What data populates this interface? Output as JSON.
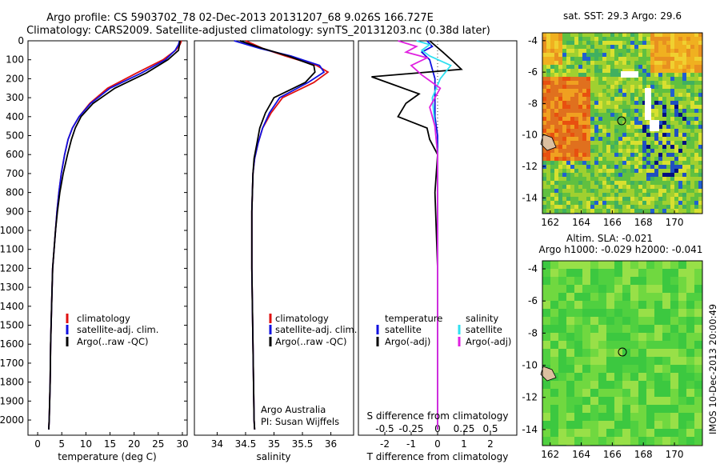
{
  "title_line1": "Argo profile: CS 5903702_78 02-Dec-2013 20131207_68 9.026S 166.727E",
  "title_line2": "Climatology: CARS2009. Satellite-adjusted climatology: synTS_20131203.nc (0.38d later)",
  "colors": {
    "climatology": "#e01010",
    "satellite": "#1010e0",
    "argo": "#000000",
    "sal_satellite": "#30e0f0",
    "sal_argo": "#e020e0"
  },
  "chart_data": [
    {
      "type": "line",
      "name": "temperature-profile",
      "xlabel": "temperature (deg C)",
      "ylabel": "",
      "xlim": [
        -2,
        31
      ],
      "ylim": [
        2080,
        0
      ],
      "xticks": [
        0,
        5,
        10,
        15,
        20,
        25,
        30
      ],
      "yticks": [
        0,
        100,
        200,
        300,
        400,
        500,
        600,
        700,
        800,
        900,
        1000,
        1100,
        1200,
        1300,
        1400,
        1500,
        1600,
        1700,
        1800,
        1900,
        2000
      ],
      "legend": [
        "climatology",
        "satellite-adj. clim.",
        "Argo(..raw -QC)"
      ],
      "series": [
        {
          "name": "climatology",
          "x": [
            29.8,
            29.5,
            28.6,
            26,
            20.5,
            14.5,
            10.8,
            8.6,
            7.2,
            6.3,
            5.6,
            4.9,
            4.4,
            4.0,
            3.7,
            3.4,
            3.1,
            2.9,
            2.7,
            2.6,
            2.5,
            2.4,
            2.3
          ],
          "y": [
            0,
            20,
            50,
            100,
            170,
            250,
            330,
            400,
            460,
            520,
            600,
            700,
            800,
            900,
            1000,
            1100,
            1200,
            1400,
            1600,
            1800,
            1900,
            2000,
            2050
          ]
        },
        {
          "name": "satellite-adj. clim.",
          "x": [
            29.4,
            29.2,
            28.5,
            26.5,
            21.5,
            15,
            11,
            8.6,
            7.2,
            6.3,
            5.6,
            4.9,
            4.4,
            4.0,
            3.7,
            3.4,
            3.1,
            2.9,
            2.7,
            2.6,
            2.5,
            2.4,
            2.3
          ],
          "y": [
            0,
            20,
            50,
            100,
            170,
            250,
            330,
            400,
            460,
            520,
            600,
            700,
            800,
            900,
            1000,
            1100,
            1200,
            1400,
            1600,
            1800,
            1900,
            2000,
            2050
          ]
        },
        {
          "name": "Argo(..raw -QC)",
          "x": [
            29.5,
            29.4,
            29.2,
            27,
            22.5,
            16,
            11.5,
            9,
            7.8,
            7.0,
            6.2,
            5.3,
            4.6,
            4.1,
            3.7,
            3.4,
            3.1,
            2.9,
            2.7,
            2.6,
            2.5,
            2.4,
            2.3
          ],
          "y": [
            0,
            20,
            50,
            100,
            170,
            250,
            330,
            400,
            460,
            520,
            600,
            700,
            800,
            900,
            1000,
            1100,
            1200,
            1400,
            1600,
            1800,
            1900,
            2000,
            2050
          ]
        }
      ]
    },
    {
      "type": "line",
      "name": "salinity-profile",
      "xlabel": "salinity",
      "xlim": [
        33.6,
        36.4
      ],
      "ylim": [
        2080,
        0
      ],
      "xticks": [
        34,
        34.5,
        35,
        35.5,
        36
      ],
      "xticklabels": [
        "34",
        "34.5",
        "35",
        "35.5",
        "36"
      ],
      "legend": [
        "climatology",
        "satellite-adj. clim.",
        "Argo(..raw -QC)"
      ],
      "annotation": [
        "Argo Australia",
        "PI: Susan Wijffels"
      ],
      "series": [
        {
          "name": "climatology",
          "x": [
            34.5,
            34.8,
            35.2,
            35.75,
            35.95,
            35.7,
            35.15,
            34.95,
            34.8,
            34.72,
            34.66,
            34.63,
            34.62,
            34.61,
            34.61,
            34.61,
            34.62,
            34.63,
            34.64,
            34.65,
            34.66
          ],
          "y": [
            0,
            40,
            80,
            130,
            165,
            220,
            300,
            380,
            460,
            540,
            620,
            700,
            800,
            900,
            1000,
            1200,
            1400,
            1600,
            1800,
            2000,
            2050
          ]
        },
        {
          "name": "satellite-adj. clim.",
          "x": [
            34.3,
            34.75,
            35.3,
            35.8,
            35.88,
            35.6,
            35.1,
            34.92,
            34.8,
            34.72,
            34.66,
            34.63,
            34.62,
            34.61,
            34.61,
            34.61,
            34.62,
            34.63,
            34.64,
            34.65,
            34.66
          ],
          "y": [
            0,
            40,
            80,
            130,
            165,
            220,
            300,
            380,
            460,
            540,
            620,
            700,
            800,
            900,
            1000,
            1200,
            1400,
            1600,
            1800,
            2000,
            2050
          ]
        },
        {
          "name": "Argo(..raw -QC)",
          "x": [
            34.4,
            34.8,
            35.25,
            35.7,
            35.72,
            35.55,
            35.0,
            34.85,
            34.75,
            34.7,
            34.65,
            34.63,
            34.62,
            34.61,
            34.61,
            34.61,
            34.62,
            34.63,
            34.64,
            34.65,
            34.66
          ],
          "y": [
            0,
            40,
            80,
            130,
            165,
            220,
            300,
            380,
            460,
            540,
            620,
            700,
            800,
            900,
            1000,
            1200,
            1400,
            1600,
            1800,
            2000,
            2050
          ]
        }
      ]
    },
    {
      "type": "line",
      "name": "difference-profile",
      "xlabel": "T difference from climatology",
      "xlabel_top": "S difference from climatology",
      "xlim": [
        -3,
        3
      ],
      "ylim": [
        2080,
        0
      ],
      "xticks": [
        -2,
        -1,
        0,
        1,
        2
      ],
      "xticks_top_labels": [
        "-0.5",
        "-0.25",
        "0",
        "0.25",
        "0.5"
      ],
      "xticks_top_values": [
        -2,
        -1,
        0,
        1,
        2
      ],
      "legend_temperature_title": "temperature",
      "legend_salinity_title": "salinity",
      "legend": [
        "satellite",
        "Argo(-adj)",
        "satellite",
        "Argo(-adj)"
      ],
      "series": [
        {
          "name": "T satellite",
          "x": [
            -0.4,
            -0.2,
            -0.6,
            -0.3,
            -0.2,
            -0.1,
            -0.1,
            -0.1,
            0,
            0,
            0,
            0,
            0,
            0
          ],
          "y": [
            0,
            30,
            60,
            100,
            150,
            200,
            300,
            400,
            500,
            700,
            1000,
            1500,
            1900,
            2050
          ]
        },
        {
          "name": "T Argo(-adj)",
          "x": [
            -0.3,
            0.2,
            0.6,
            0.9,
            -2.5,
            -1.7,
            -0.7,
            -1.2,
            -1.5,
            -0.4,
            -0.3,
            0,
            -0.1,
            0,
            0,
            0
          ],
          "y": [
            0,
            60,
            110,
            150,
            190,
            230,
            280,
            330,
            400,
            460,
            520,
            600,
            800,
            1200,
            1800,
            2050
          ]
        },
        {
          "name": "S satellite",
          "x": [
            -0.8,
            -0.3,
            -0.6,
            -0.3,
            0.5,
            0.1,
            -0.2,
            -0.1,
            0,
            0,
            0,
            0
          ],
          "y": [
            0,
            20,
            50,
            80,
            130,
            200,
            300,
            450,
            600,
            800,
            1000,
            2050
          ]
        },
        {
          "name": "S Argo(-adj)",
          "x": [
            -1.5,
            -0.8,
            -1.2,
            -0.4,
            -1.0,
            -0.6,
            0.1,
            -0.3,
            -0.1,
            0,
            0,
            0
          ],
          "y": [
            0,
            30,
            60,
            90,
            130,
            180,
            250,
            350,
            450,
            600,
            800,
            2050
          ]
        }
      ]
    },
    {
      "type": "heatmap",
      "name": "sst-map",
      "title": "sat. SST: 29.3 Argo: 29.6",
      "xlim": [
        161.5,
        171.8
      ],
      "ylim": [
        -15,
        -3.5
      ],
      "xticks": [
        162,
        164,
        166,
        168,
        170
      ],
      "yticks": [
        -4,
        -6,
        -8,
        -10,
        -12,
        -14
      ],
      "marker": {
        "lon": 166.727,
        "lat": -9.026
      }
    },
    {
      "type": "heatmap",
      "name": "sla-map",
      "title_line1": "Altim. SLA: -0.021",
      "title_line2": "Argo h1000: -0.029 h2000: -0.041",
      "xlim": [
        161.5,
        171.8
      ],
      "ylim": [
        -15,
        -3.5
      ],
      "xticks": [
        162,
        164,
        166,
        168,
        170
      ],
      "yticks": [
        -4,
        -6,
        -8,
        -10,
        -12,
        -14
      ],
      "marker": {
        "lon": 166.727,
        "lat": -9.026
      }
    }
  ],
  "side_caption": "IMOS 10-Dec-2013 20:00:49"
}
